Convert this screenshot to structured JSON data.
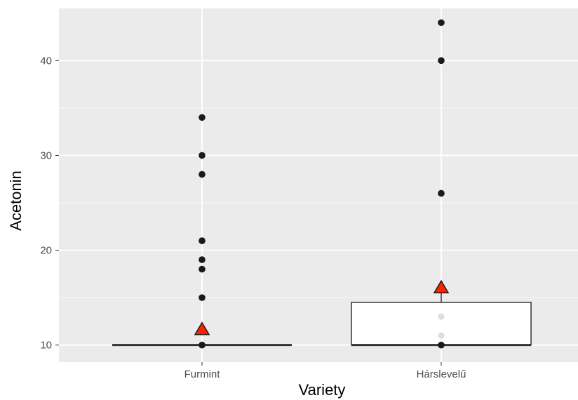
{
  "chart_data": {
    "type": "boxplot",
    "xlabel": "Variety",
    "ylabel": "Acetonin",
    "categories": [
      "Furmint",
      "Hárslevelű"
    ],
    "ylim": [
      8.2,
      45.5
    ],
    "yticks": [
      10,
      20,
      30,
      40
    ],
    "yticks_minor": [
      15,
      25,
      35
    ],
    "grid": true,
    "colors": {
      "panel": "#ebebeb",
      "grid": "#ffffff",
      "box_fill": "#ffffff",
      "box_line": "#333333",
      "point": "#1a1a1a",
      "jitter_point": "#dddddd",
      "mean_fill": "#ff2200",
      "mean_stroke": "#1a1a1a"
    },
    "boxes": [
      {
        "category": "Furmint",
        "q1": 10,
        "median": 10,
        "q3": 10,
        "whisker_low": 10,
        "whisker_high": 10,
        "mean": 11.7
      },
      {
        "category": "Hárslevelű",
        "q1": 10,
        "median": 10,
        "q3": 14.5,
        "whisker_low": 10,
        "whisker_high": 16,
        "mean": 16.1
      }
    ],
    "points": [
      {
        "category": "Furmint",
        "values": [
          34,
          30,
          28,
          21,
          19,
          18,
          15,
          10
        ]
      },
      {
        "category": "Hárslevelű",
        "values": [
          44,
          40,
          26,
          10
        ]
      }
    ],
    "jitter_points": [
      {
        "category": "Hárslevelű",
        "values": [
          13,
          11
        ]
      }
    ]
  }
}
